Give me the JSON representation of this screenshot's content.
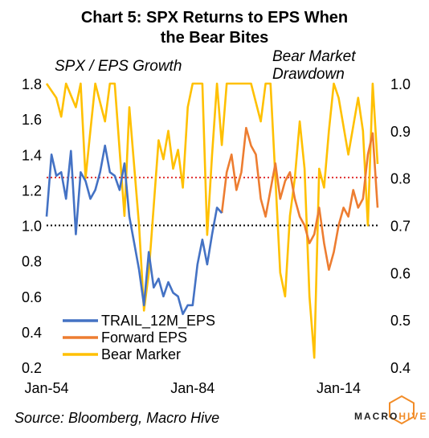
{
  "chart_data": {
    "type": "line",
    "title": "Chart 5: SPX Returns to EPS  When the Bear Bites",
    "title_lines": [
      "Chart 5: SPX Returns to EPS  When",
      "the Bear Bites"
    ],
    "left_axis_label": "SPX / EPS Growth",
    "right_axis_label_lines": [
      "Bear Market",
      "Drawdown"
    ],
    "x_tick_labels": [
      "Jan-54",
      "Jan-84",
      "Jan-14"
    ],
    "xlim": [
      1954,
      2022
    ],
    "ylim_left": [
      0.2,
      1.8
    ],
    "ylim_right": [
      0.4,
      1.0
    ],
    "left_ticks": [
      "0.2",
      "0.4",
      "0.6",
      "0.8",
      "1.0",
      "1.2",
      "1.4",
      "1.6",
      "1.8"
    ],
    "right_ticks": [
      "0.4",
      "0.5",
      "0.6",
      "0.7",
      "0.8",
      "0.9",
      "1.0"
    ],
    "reference_lines": [
      {
        "axis": "left",
        "value": 1.0,
        "color": "#000000",
        "style": "dotted"
      },
      {
        "axis": "left",
        "value": 1.27,
        "color": "#e03030",
        "style": "dotted"
      }
    ],
    "legend_position": "bottom-left",
    "series": [
      {
        "name": "TRAIL_12M_EPS",
        "axis": "left",
        "color": "#4472c4",
        "x": [
          1954,
          1955,
          1956,
          1957,
          1958,
          1959,
          1960,
          1961,
          1962,
          1963,
          1964,
          1965,
          1966,
          1967,
          1968,
          1969,
          1970,
          1971,
          1972,
          1973,
          1974,
          1975,
          1976,
          1977,
          1978,
          1979,
          1980,
          1981,
          1982,
          1983,
          1984,
          1985,
          1986,
          1987,
          1988,
          1989,
          1990
        ],
        "y": [
          1.05,
          1.4,
          1.28,
          1.3,
          1.15,
          1.42,
          0.95,
          1.3,
          1.25,
          1.15,
          1.2,
          1.3,
          1.45,
          1.3,
          1.28,
          1.2,
          1.35,
          1.05,
          0.9,
          0.75,
          0.55,
          0.85,
          0.65,
          0.7,
          0.6,
          0.68,
          0.62,
          0.6,
          0.5,
          0.55,
          0.55,
          0.78,
          0.92,
          0.78,
          0.95,
          1.1,
          1.07
        ]
      },
      {
        "name": "Forward EPS",
        "axis": "left",
        "color": "#ed7d31",
        "x": [
          1990,
          1991,
          1992,
          1993,
          1994,
          1995,
          1996,
          1997,
          1998,
          1999,
          2000,
          2001,
          2002,
          2003,
          2004,
          2005,
          2006,
          2007,
          2008,
          2009,
          2010,
          2011,
          2012,
          2013,
          2014,
          2015,
          2016,
          2017,
          2018,
          2019,
          2020,
          2021,
          2022
        ],
        "y": [
          1.07,
          1.3,
          1.4,
          1.2,
          1.3,
          1.55,
          1.45,
          1.4,
          1.15,
          1.05,
          1.2,
          1.35,
          1.15,
          1.25,
          1.3,
          1.15,
          1.05,
          1.0,
          0.9,
          0.95,
          1.1,
          0.9,
          0.75,
          0.85,
          1.0,
          1.1,
          1.05,
          1.2,
          1.1,
          1.15,
          1.4,
          1.52,
          1.1
        ]
      },
      {
        "name": "Bear Marker",
        "axis": "right",
        "color": "#ffc000",
        "x": [
          1954,
          1956,
          1957,
          1958,
          1960,
          1961,
          1962,
          1963,
          1964,
          1966,
          1967,
          1968,
          1970,
          1971,
          1973,
          1974,
          1975,
          1977,
          1978,
          1979,
          1980,
          1981,
          1982,
          1983,
          1984,
          1986,
          1987,
          1988,
          1989,
          1990,
          1991,
          1992,
          1994,
          1996,
          1998,
          1999,
          2000,
          2001,
          2002,
          2003,
          2004,
          2005,
          2006,
          2007,
          2008,
          2009,
          2010,
          2011,
          2012,
          2013,
          2014,
          2016,
          2018,
          2019,
          2020,
          2021,
          2022
        ],
        "y": [
          1.0,
          0.97,
          0.93,
          1.0,
          0.95,
          1.0,
          0.8,
          0.9,
          1.0,
          0.92,
          1.0,
          1.0,
          0.72,
          0.95,
          0.7,
          0.52,
          0.6,
          0.88,
          0.84,
          0.9,
          0.82,
          0.86,
          0.78,
          0.95,
          1.0,
          1.0,
          0.68,
          0.85,
          1.0,
          0.87,
          1.0,
          1.0,
          1.0,
          1.0,
          0.92,
          1.0,
          1.0,
          0.8,
          0.6,
          0.55,
          0.72,
          0.8,
          0.92,
          0.82,
          0.55,
          0.42,
          0.82,
          0.78,
          0.9,
          1.0,
          0.97,
          0.85,
          0.97,
          0.9,
          0.7,
          1.0,
          0.83
        ]
      }
    ]
  }
}
